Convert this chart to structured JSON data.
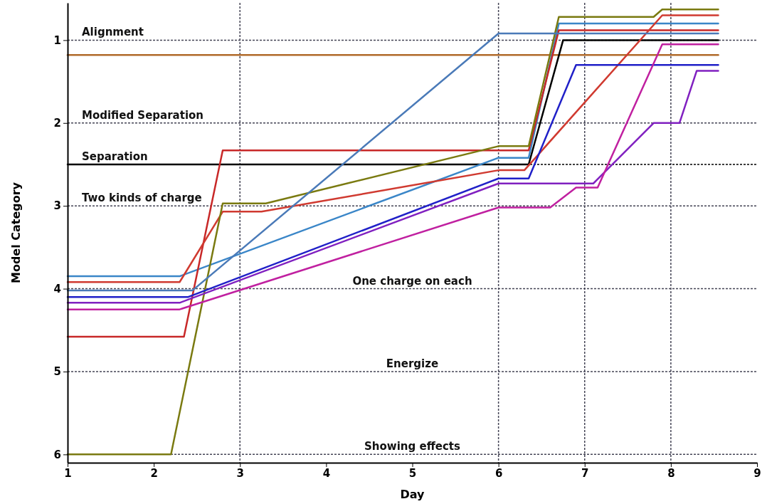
{
  "chart_data": {
    "type": "line",
    "xlabel": "Day",
    "ylabel": "Model Category",
    "xlim": [
      1,
      9
    ],
    "xticks": [
      1,
      2,
      3,
      4,
      5,
      6,
      7,
      8,
      9
    ],
    "ylim": [
      6.1,
      0.55
    ],
    "yticks": [
      1,
      2,
      3,
      4,
      5,
      6
    ],
    "marker": "none",
    "line_style": "solid",
    "ref_lines": [
      {
        "axis": "x",
        "value": 3
      },
      {
        "axis": "x",
        "value": 6
      },
      {
        "axis": "x",
        "value": 7
      },
      {
        "axis": "x",
        "value": 8
      },
      {
        "axis": "y",
        "value": 1,
        "label": "Alignment"
      },
      {
        "axis": "y",
        "value": 2,
        "label": "Modified Separation"
      },
      {
        "axis": "y",
        "value": 2.5,
        "label": "Separation",
        "color": "#000000"
      },
      {
        "axis": "y",
        "value": 3,
        "label": "Two kinds of charge"
      },
      {
        "axis": "y",
        "value": 4,
        "label": "One charge on each"
      },
      {
        "axis": "y",
        "value": 5,
        "label": "Energize"
      },
      {
        "axis": "y",
        "value": 6,
        "label": "Showing effects"
      }
    ],
    "series": [
      {
        "color": "#b06a2a",
        "x": [
          1,
          8.55
        ],
        "values": [
          1.18,
          1.18
        ]
      },
      {
        "color": "#000000",
        "x": [
          1,
          6.35,
          6.75,
          8.55
        ],
        "values": [
          2.5,
          2.5,
          1.0,
          1.0
        ]
      },
      {
        "color": "#3a86c8",
        "x": [
          1,
          2.3,
          6.0,
          6.35,
          6.7,
          8.55
        ],
        "values": [
          3.85,
          3.85,
          2.42,
          2.42,
          0.8,
          0.8
        ]
      },
      {
        "color": "#c82828",
        "x": [
          1,
          2.35,
          2.8,
          3.25,
          6.35,
          6.7,
          8.55
        ],
        "values": [
          4.58,
          4.58,
          2.33,
          2.33,
          2.33,
          0.88,
          0.88
        ]
      },
      {
        "color": "#d03a30",
        "x": [
          1,
          2.3,
          2.8,
          3.25,
          6.0,
          6.3,
          7.9,
          8.55
        ],
        "values": [
          3.92,
          3.92,
          3.07,
          3.07,
          2.57,
          2.57,
          0.7,
          0.7
        ]
      },
      {
        "color": "#7a7a10",
        "x": [
          1,
          2.2,
          2.8,
          3.3,
          6.0,
          6.35,
          6.7,
          7.8,
          7.9,
          8.55
        ],
        "values": [
          6.0,
          6.0,
          2.97,
          2.97,
          2.28,
          2.28,
          0.72,
          0.72,
          0.63,
          0.63
        ]
      },
      {
        "color": "#4a7ab8",
        "x": [
          1,
          2.45,
          6.0,
          8.55
        ],
        "values": [
          4.02,
          4.02,
          0.92,
          0.92
        ]
      },
      {
        "color": "#2020c8",
        "x": [
          1,
          2.4,
          6.0,
          6.35,
          6.9,
          8.55
        ],
        "values": [
          4.1,
          4.1,
          2.67,
          2.67,
          1.3,
          1.3
        ]
      },
      {
        "color": "#8020c0",
        "x": [
          1,
          2.3,
          6.0,
          7.1,
          7.8,
          8.1,
          8.3,
          8.55
        ],
        "values": [
          4.17,
          4.17,
          2.73,
          2.73,
          2.0,
          2.0,
          1.37,
          1.37
        ]
      },
      {
        "color": "#c020a0",
        "x": [
          1,
          2.3,
          6.0,
          6.6,
          6.9,
          7.15,
          7.9,
          8.55
        ],
        "values": [
          4.25,
          4.25,
          3.02,
          3.02,
          2.78,
          2.78,
          1.05,
          1.05
        ]
      }
    ]
  }
}
